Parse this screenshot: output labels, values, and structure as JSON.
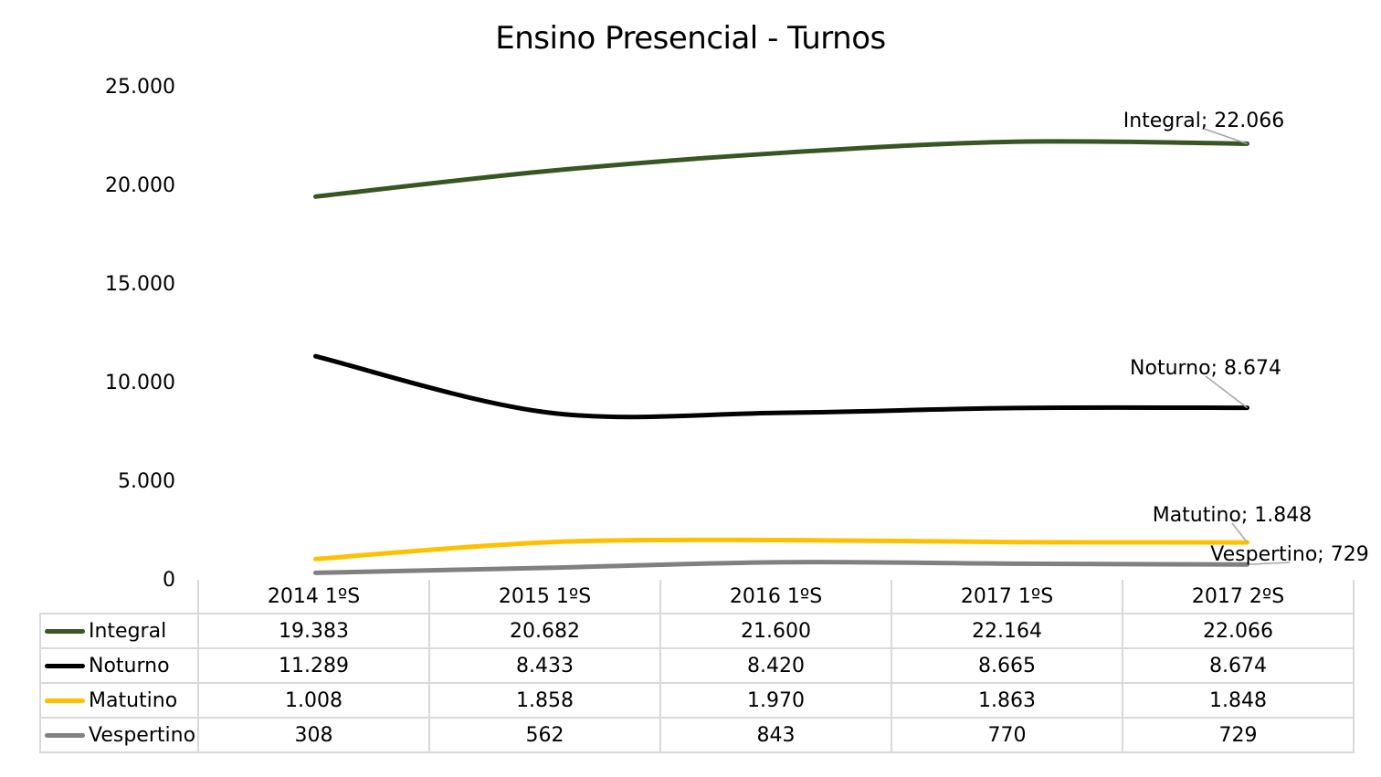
{
  "chart_data": {
    "type": "line",
    "title": "Ensino Presencial - Turnos",
    "categories": [
      "2014 1ºS",
      "2015 1ºS",
      "2016 1ºS",
      "2017 1ºS",
      "2017 2ºS"
    ],
    "ylim": [
      0,
      25000
    ],
    "yticks": [
      0,
      5000,
      10000,
      15000,
      20000,
      25000
    ],
    "ytick_labels": [
      "0",
      "5.000",
      "10.000",
      "15.000",
      "20.000",
      "25.000"
    ],
    "grid": false,
    "smooth": true,
    "legend": "data-table",
    "series": [
      {
        "name": "Integral",
        "color": "#375623",
        "values": [
          19383,
          20682,
          21600,
          22164,
          22066
        ],
        "display": [
          "19.383",
          "20.682",
          "21.600",
          "22.164",
          "22.066"
        ],
        "end_label": "Integral; 22.066"
      },
      {
        "name": "Noturno",
        "color": "#000000",
        "values": [
          11289,
          8433,
          8420,
          8665,
          8674
        ],
        "display": [
          "11.289",
          "8.433",
          "8.420",
          "8.665",
          "8.674"
        ],
        "end_label": "Noturno; 8.674"
      },
      {
        "name": "Matutino",
        "color": "#FFC000",
        "values": [
          1008,
          1858,
          1970,
          1863,
          1848
        ],
        "display": [
          "1.008",
          "1.858",
          "1.970",
          "1.863",
          "1.848"
        ],
        "end_label": "Matutino; 1.848"
      },
      {
        "name": "Vespertino",
        "color": "#808080",
        "values": [
          308,
          562,
          843,
          770,
          729
        ],
        "display": [
          "308",
          "562",
          "843",
          "770",
          "729"
        ],
        "end_label": "Vespertino; 729"
      }
    ]
  }
}
